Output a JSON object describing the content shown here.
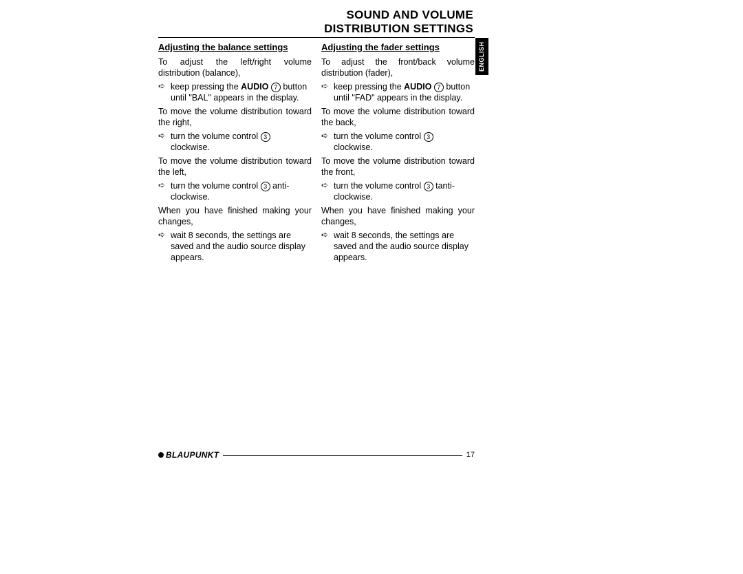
{
  "title_line1": "SOUND AND VOLUME",
  "title_line2": "DISTRIBUTION SETTINGS",
  "lang_tab": "ENGLISH",
  "brand": "BLAUPUNKT",
  "page_number": "17",
  "refs": {
    "audio_btn": "7",
    "vol_ctrl": "3"
  },
  "col_left": {
    "heading": "Adjusting the balance settings",
    "intro": "To adjust the left/right volume distribution (balance),",
    "step1_pre": "keep pressing the ",
    "step1_bold": "AUDIO",
    "step1_post": " button until \"BAL\" appears in the display.",
    "p2": "To move the volume distribution toward the right,",
    "step2a": "turn the volume control ",
    "step2b": " clockwise.",
    "p3": "To move the volume distribution toward the left,",
    "step3a": "turn the volume control ",
    "step3b": " anti-clockwise.",
    "p4": "When you have finished making your changes,",
    "step4": "wait 8 seconds, the settings are saved and the audio source display appears."
  },
  "col_right": {
    "heading": "Adjusting the fader settings",
    "intro": "To adjust the front/back volume distribution (fader),",
    "step1_pre": "keep pressing the ",
    "step1_bold": "AUDIO",
    "step1_post": " button until \"FAD\" appears in the display.",
    "p2": "To move the volume distribution toward the back,",
    "step2a": "turn the volume control ",
    "step2b": " clockwise.",
    "p3": "To move the volume distribution toward the front,",
    "step3a": "turn the volume control ",
    "step3b": " tanti-clockwise.",
    "p4": "When you have finished making your changes,",
    "step4": "wait 8 seconds, the settings are saved and the audio source display appears."
  }
}
